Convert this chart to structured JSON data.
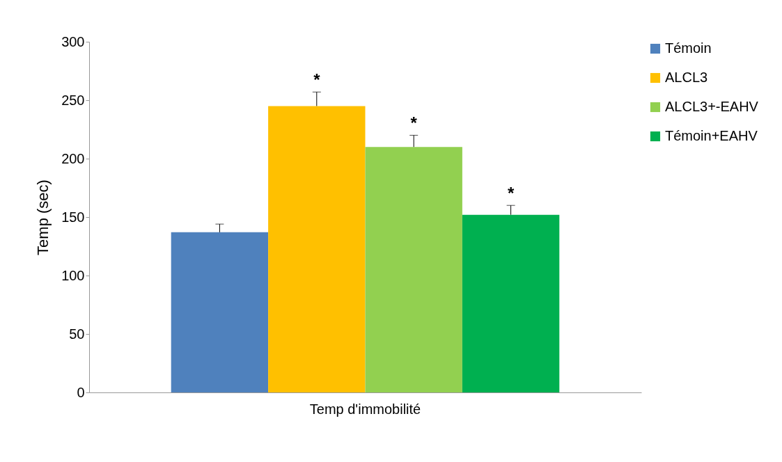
{
  "chart_data": {
    "type": "bar",
    "ylabel": "Temp (sec)",
    "categories": [
      "Temp d'immobilité"
    ],
    "series": [
      {
        "name": "Témoin",
        "color": "#4f81bd",
        "values": [
          137
        ],
        "errors": [
          [
            137,
            144
          ]
        ],
        "value_labels": [
          null
        ]
      },
      {
        "name": "ALCL3",
        "color": "#ffc000",
        "values": [
          245
        ],
        "errors": [
          [
            245,
            257
          ]
        ],
        "value_labels": [
          "*"
        ]
      },
      {
        "name": "ALCL3+-EAHV",
        "color": "#92d050",
        "values": [
          210
        ],
        "errors": [
          [
            210,
            220
          ]
        ],
        "value_labels": [
          "*"
        ]
      },
      {
        "name": "Témoin+EAHV",
        "color": "#00b050",
        "values": [
          152
        ],
        "errors": [
          [
            152,
            160
          ]
        ],
        "value_labels": [
          "*"
        ]
      }
    ],
    "ylim": [
      0,
      300
    ],
    "yticks": [
      0,
      50,
      100,
      150,
      200,
      250,
      300
    ],
    "grid": false,
    "legend": "right"
  }
}
